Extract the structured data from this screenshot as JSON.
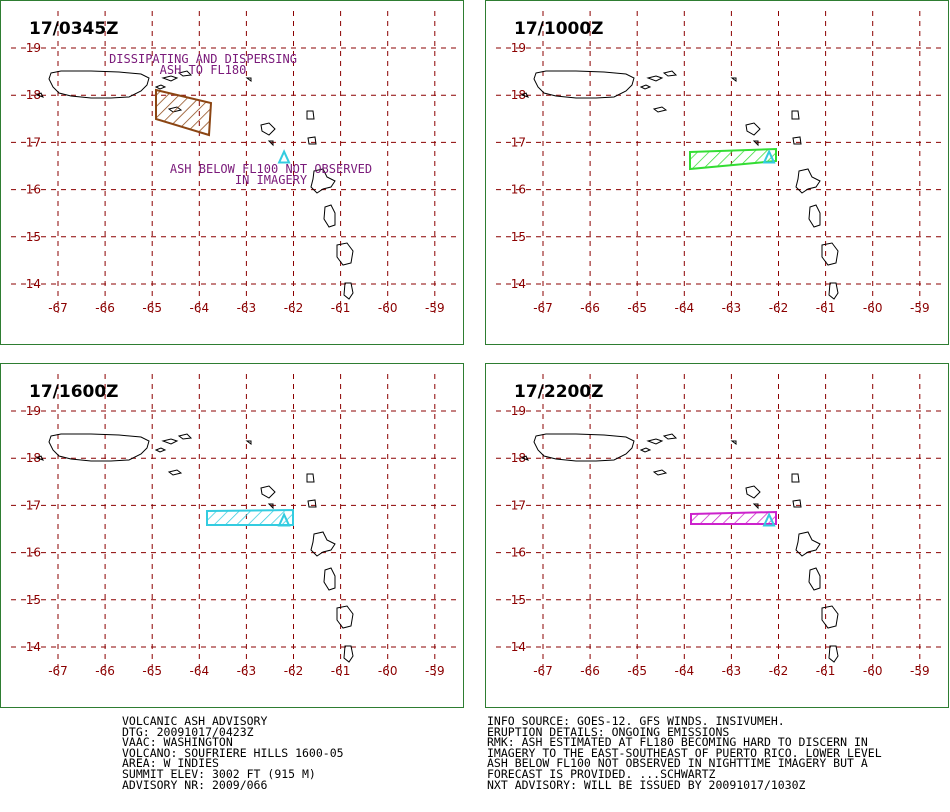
{
  "panels": [
    {
      "time": "17/0345Z",
      "color": "#8b4513",
      "annotations": [
        "DISSIPATING AND DISPERSING",
        "ASH TO FL180",
        "ASH BELOW FL100 NOT OBSERVED",
        "IN IMAGERY"
      ]
    },
    {
      "time": "17/1000Z",
      "color": "#33dd33",
      "annotations": []
    },
    {
      "time": "17/1600Z",
      "color": "#33cce0",
      "annotations": []
    },
    {
      "time": "17/2200Z",
      "color": "#cc22cc",
      "annotations": []
    }
  ],
  "axes": {
    "lon_labels": [
      "-67",
      "-66",
      "-65",
      "-64",
      "-63",
      "-62",
      "-61",
      "-60",
      "-59"
    ],
    "lat_labels": [
      "19",
      "18",
      "17",
      "16",
      "15",
      "14"
    ]
  },
  "advisory": {
    "lines": [
      "VOLCANIC ASH ADVISORY",
      "DTG: 20091017/0423Z",
      "VAAC: WASHINGTON",
      "VOLCANO: SOUFRIERE HILLS 1600-05",
      "AREA: W_INDIES",
      "SUMMIT ELEV: 3002 FT (915 M)",
      "ADVISORY NR: 2009/066"
    ]
  },
  "info": {
    "lines": [
      "INFO SOURCE: GOES-12. GFS WINDS. INSIVUMEH.",
      "ERUPTION DETAILS: ONGOING EMISSIONS",
      "RMK: ASH ESTIMATED AT FL180 BECOMING HARD TO DISCERN IN",
      "IMAGERY TO THE EAST-SOUTHEAST OF PUERTO RICO. LOWER LEVEL",
      "ASH BELOW FL100 NOT OBSERVED IN NIGHTTIME IMAGERY BUT A",
      "FORECAST IS PROVIDED. ...SCHWARTZ",
      "NXT ADVISORY: WILL BE ISSUED BY 20091017/1030Z"
    ]
  },
  "colors": {
    "grid": "#8b0000",
    "label": "#8b0000",
    "annotation": "#7a1a7a",
    "volcano": "#33cce0",
    "frame": "#2e7d32"
  }
}
